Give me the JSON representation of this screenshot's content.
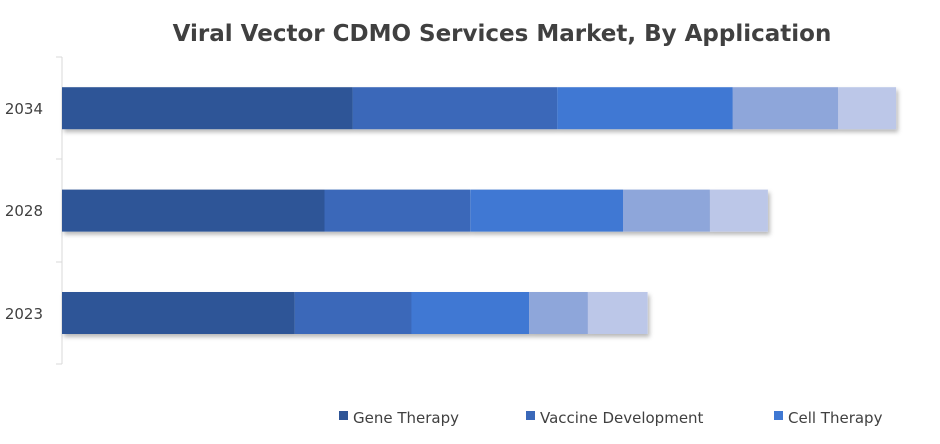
{
  "chart_data": {
    "type": "bar",
    "orientation": "horizontal",
    "stacked": true,
    "title": "Viral Vector CDMO Services Market, By Application",
    "categories": [
      "2034",
      "2028",
      "2023"
    ],
    "series": [
      {
        "name": "Gene Therapy",
        "values": [
          33.1,
          29.9,
          26.5
        ],
        "color": "#2F5597"
      },
      {
        "name": "Vaccine Development",
        "values": [
          23.3,
          16.6,
          13.3
        ],
        "color": "#3A68B9"
      },
      {
        "name": "Cell Therapy",
        "values": [
          20.0,
          17.4,
          13.4
        ],
        "color": "#3F78D3"
      },
      {
        "values": [
          12.0,
          9.9,
          6.7
        ],
        "color": "#8EA6DA"
      },
      {
        "values": [
          6.6,
          6.6,
          6.8
        ],
        "color": "#BCC7E8"
      }
    ],
    "xlim": [
      0,
      100
    ],
    "grid": false,
    "legend_position": "bottom"
  }
}
